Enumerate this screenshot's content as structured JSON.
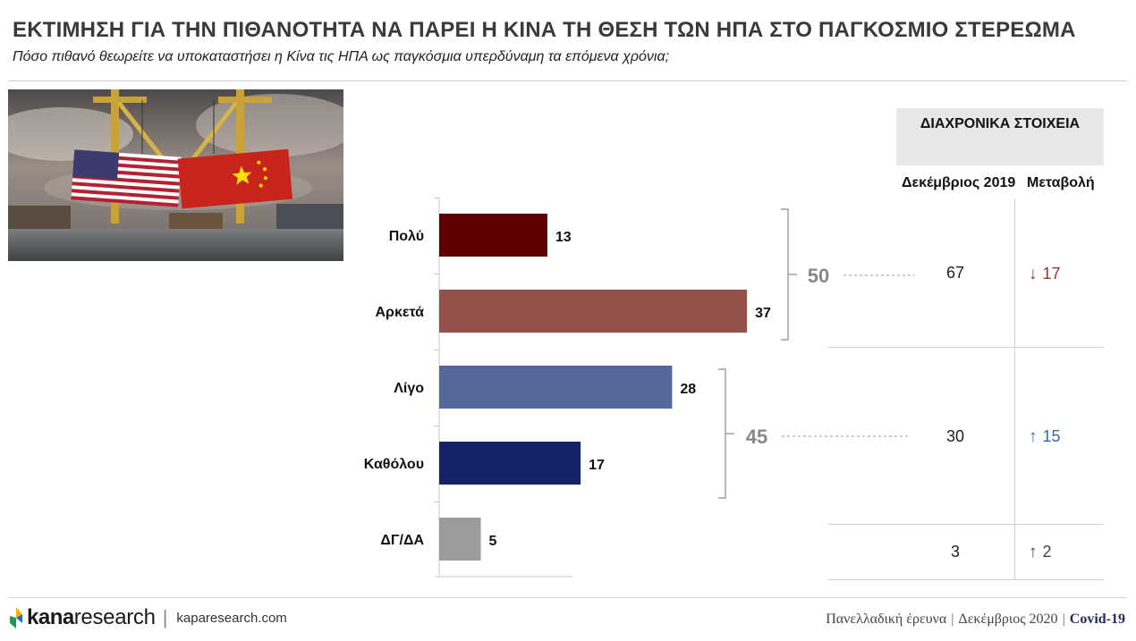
{
  "header": {
    "title": "ΕΚΤΙΜΗΣΗ ΓΙΑ ΤΗΝ ΠΙΘΑΝΟΤΗΤΑ ΝΑ ΠΑΡΕΙ Η ΚΙΝΑ ΤΗ ΘΕΣΗ ΤΩΝ ΗΠΑ ΣΤΟ ΠΑΓΚΟΣΜΙΟ ΣΤΕΡΕΩΜΑ",
    "subtitle": "Πόσο πιθανό θεωρείτε να υποκαταστήσει η Κίνα τις ΗΠΑ ως παγκόσμια υπερδύναμη τα επόμενα χρόνια;"
  },
  "chart_data": {
    "type": "bar",
    "orientation": "horizontal",
    "categories": [
      "Πολύ",
      "Αρκετά",
      "Λίγο",
      "Καθόλου",
      "ΔΓ/ΔΑ"
    ],
    "values": [
      13,
      37,
      28,
      17,
      5
    ],
    "colors": [
      "#5c0000",
      "#94514c",
      "#56679a",
      "#15226a",
      "#9b9b9b"
    ],
    "groups": [
      {
        "total": "50",
        "color": "#888888"
      },
      {
        "total": "45",
        "color": "#888888"
      }
    ]
  },
  "historical": {
    "header": "ΔΙΑΧΡΟΝΙΚΑ ΣΤΟΙΧΕΙΑ",
    "col_dec": "Δεκέμβριος 2019",
    "col_change": "Μεταβολή",
    "rows": [
      {
        "dec2019": "67",
        "change": "17",
        "arrow": "↓",
        "arrow_color": "#8a3b2e"
      },
      {
        "dec2019": "30",
        "change": "15",
        "arrow": "↑",
        "arrow_color": "#2f6db5"
      },
      {
        "dec2019": "3",
        "change": "2",
        "arrow": "↑",
        "arrow_color": "#444444"
      }
    ]
  },
  "footer": {
    "logo_kana": "kana",
    "logo_research": "research",
    "url": "kaparesearch.com",
    "survey": "Πανελλαδική έρευνα",
    "date": "Δεκέμβριος 2020",
    "tag": "Covid-19"
  },
  "colors": {
    "accent_up": "#2f6db5",
    "accent_down": "#8a3b2e",
    "logo_yellow": "#f2b705",
    "logo_blue": "#1f6fb2",
    "logo_green": "#1e9a57"
  }
}
